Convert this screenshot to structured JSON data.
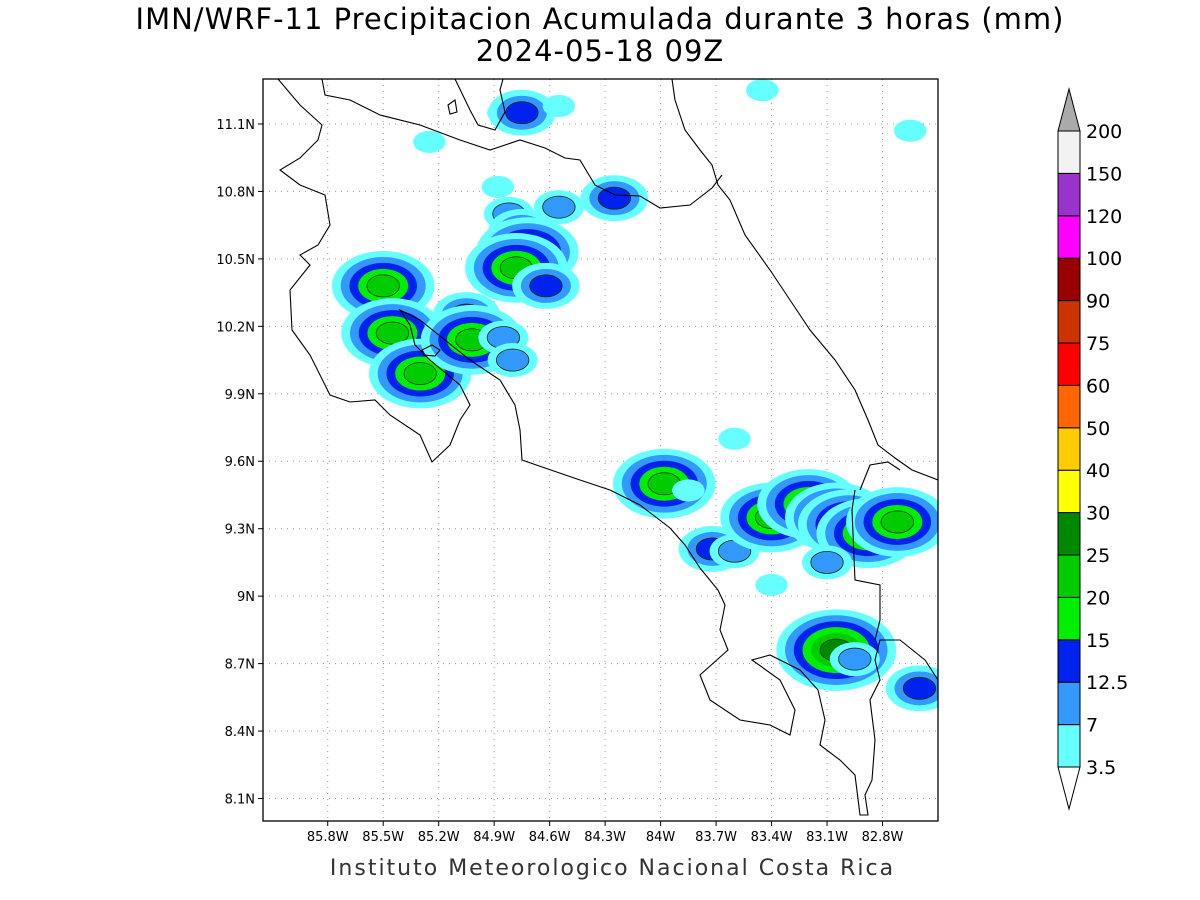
{
  "title": {
    "line1": "IMN/WRF-11 Precipitacion Acumulada durante 3 horas (mm)",
    "line2": "2024-05-18 09Z"
  },
  "footer": "Instituto Meteorologico Nacional Costa Rica",
  "map": {
    "lon_range": [
      -86.15,
      -82.5
    ],
    "lat_range": [
      8.0,
      11.3
    ],
    "lat_ticks": [
      {
        "value": 11.1,
        "label": "11.1N"
      },
      {
        "value": 10.8,
        "label": "10.8N"
      },
      {
        "value": 10.5,
        "label": "10.5N"
      },
      {
        "value": 10.2,
        "label": "10.2N"
      },
      {
        "value": 9.9,
        "label": "9.9N"
      },
      {
        "value": 9.6,
        "label": "9.6N"
      },
      {
        "value": 9.3,
        "label": "9.3N"
      },
      {
        "value": 9.0,
        "label": "9N"
      },
      {
        "value": 8.7,
        "label": "8.7N"
      },
      {
        "value": 8.4,
        "label": "8.4N"
      },
      {
        "value": 8.1,
        "label": "8.1N"
      }
    ],
    "lon_ticks": [
      {
        "value": -85.8,
        "label": "85.8W"
      },
      {
        "value": -85.5,
        "label": "85.5W"
      },
      {
        "value": -85.2,
        "label": "85.2W"
      },
      {
        "value": -84.9,
        "label": "84.9W"
      },
      {
        "value": -84.6,
        "label": "84.6W"
      },
      {
        "value": -84.3,
        "label": "84.3W"
      },
      {
        "value": -84.0,
        "label": "84W"
      },
      {
        "value": -83.7,
        "label": "83.7W"
      },
      {
        "value": -83.4,
        "label": "83.4W"
      },
      {
        "value": -83.1,
        "label": "83.1W"
      },
      {
        "value": -82.8,
        "label": "82.8W"
      }
    ],
    "grid": true,
    "precip_cells": [
      {
        "lon": -84.85,
        "lat": 11.15,
        "mm": 3.5
      },
      {
        "lon": -84.75,
        "lat": 11.15,
        "mm": 12.5
      },
      {
        "lon": -84.55,
        "lat": 11.18,
        "mm": 3.5
      },
      {
        "lon": -85.25,
        "lat": 11.02,
        "mm": 3.5
      },
      {
        "lon": -84.88,
        "lat": 10.82,
        "mm": 3.5
      },
      {
        "lon": -84.82,
        "lat": 10.7,
        "mm": 7
      },
      {
        "lon": -84.75,
        "lat": 10.62,
        "mm": 12.5
      },
      {
        "lon": -84.72,
        "lat": 10.53,
        "mm": 20
      },
      {
        "lon": -84.78,
        "lat": 10.46,
        "mm": 20
      },
      {
        "lon": -84.62,
        "lat": 10.38,
        "mm": 12.5
      },
      {
        "lon": -84.55,
        "lat": 10.73,
        "mm": 7
      },
      {
        "lon": -84.25,
        "lat": 10.77,
        "mm": 12.5
      },
      {
        "lon": -85.5,
        "lat": 10.38,
        "mm": 20
      },
      {
        "lon": -85.45,
        "lat": 10.17,
        "mm": 20
      },
      {
        "lon": -85.3,
        "lat": 9.99,
        "mm": 20
      },
      {
        "lon": -85.05,
        "lat": 10.25,
        "mm": 12.5
      },
      {
        "lon": -85.02,
        "lat": 10.14,
        "mm": 20
      },
      {
        "lon": -84.85,
        "lat": 10.15,
        "mm": 7
      },
      {
        "lon": -84.8,
        "lat": 10.05,
        "mm": 7
      },
      {
        "lon": -84.05,
        "lat": 9.55,
        "mm": 7
      },
      {
        "lon": -83.98,
        "lat": 9.5,
        "mm": 20
      },
      {
        "lon": -83.85,
        "lat": 9.47,
        "mm": 3.5
      },
      {
        "lon": -83.6,
        "lat": 9.7,
        "mm": 3.5
      },
      {
        "lon": -83.72,
        "lat": 9.21,
        "mm": 12.5
      },
      {
        "lon": -83.6,
        "lat": 9.2,
        "mm": 7
      },
      {
        "lon": -83.4,
        "lat": 9.35,
        "mm": 20
      },
      {
        "lon": -83.2,
        "lat": 9.41,
        "mm": 20
      },
      {
        "lon": -83.05,
        "lat": 9.35,
        "mm": 20
      },
      {
        "lon": -82.98,
        "lat": 9.32,
        "mm": 20
      },
      {
        "lon": -82.88,
        "lat": 9.28,
        "mm": 20
      },
      {
        "lon": -82.72,
        "lat": 9.33,
        "mm": 20
      },
      {
        "lon": -83.1,
        "lat": 9.15,
        "mm": 7
      },
      {
        "lon": -83.4,
        "lat": 9.05,
        "mm": 3.5
      },
      {
        "lon": -83.05,
        "lat": 8.76,
        "mm": 25
      },
      {
        "lon": -82.95,
        "lat": 8.72,
        "mm": 7
      },
      {
        "lon": -82.6,
        "lat": 8.59,
        "mm": 12.5
      },
      {
        "lon": -82.65,
        "lat": 11.07,
        "mm": 3.5
      },
      {
        "lon": -83.45,
        "lat": 11.25,
        "mm": 3.5
      }
    ]
  },
  "colorbar": {
    "levels": [
      {
        "value": "3.5",
        "color": "#66ffff"
      },
      {
        "value": "7",
        "color": "#3399ff"
      },
      {
        "value": "12.5",
        "color": "#0022ee"
      },
      {
        "value": "15",
        "color": "#00ee00"
      },
      {
        "value": "20",
        "color": "#00cc00"
      },
      {
        "value": "25",
        "color": "#008800"
      },
      {
        "value": "30",
        "color": "#ffff00"
      },
      {
        "value": "40",
        "color": "#ffcc00"
      },
      {
        "value": "50",
        "color": "#ff6600"
      },
      {
        "value": "60",
        "color": "#ff0000"
      },
      {
        "value": "75",
        "color": "#cc3300"
      },
      {
        "value": "90",
        "color": "#990000"
      },
      {
        "value": "100",
        "color": "#ff00ff"
      },
      {
        "value": "120",
        "color": "#9933cc"
      },
      {
        "value": "150",
        "color": "#f2f2f2"
      },
      {
        "value": "200",
        "color": "#aaaaaa"
      }
    ]
  }
}
